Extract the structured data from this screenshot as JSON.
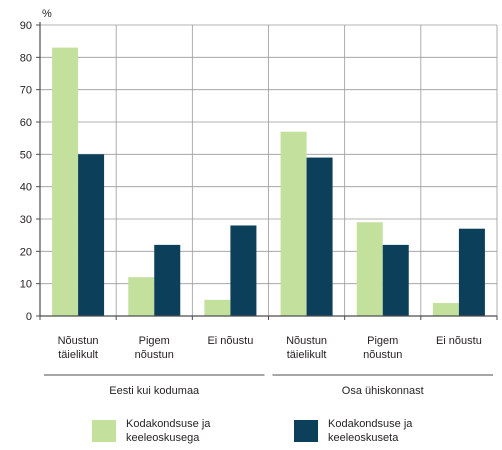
{
  "chart_data": {
    "type": "bar",
    "unit_label": "%",
    "ylim": [
      0,
      90
    ],
    "yticks": [
      0,
      10,
      20,
      30,
      40,
      50,
      60,
      70,
      80,
      90
    ],
    "grid": true,
    "groups": [
      {
        "label": "Eesti kui kodumaa",
        "categories": [
          "Nõustun\ntäielikult",
          "Pigem\nnõustun",
          "Ei nõustu"
        ]
      },
      {
        "label": "Osa ühiskonnast",
        "categories": [
          "Nõustun\ntäielikult",
          "Pigem\nnõustun",
          "Ei nõustu"
        ]
      }
    ],
    "series": [
      {
        "name": "Kodakondsuse ja\nkeeleoskusega",
        "color": "#c3e09d",
        "values": [
          83,
          12,
          5,
          57,
          29,
          4
        ]
      },
      {
        "name": "Kodakondsuse ja\nkeeleoskuseta",
        "color": "#0c3f5a",
        "values": [
          50,
          22,
          28,
          49,
          22,
          27
        ]
      }
    ],
    "legend_position": "bottom"
  }
}
